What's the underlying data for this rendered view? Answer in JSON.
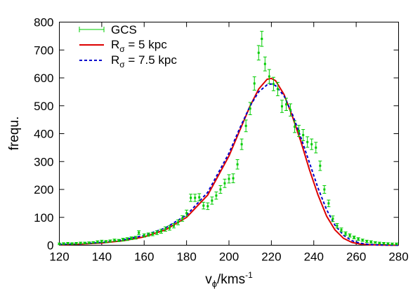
{
  "chart_data": {
    "type": "line",
    "title": "",
    "xlabel": "v",
    "xlabel_sub": "ϕ",
    "xlabel_rest": "/kms",
    "xlabel_sup": "-1",
    "ylabel": "frequ.",
    "xlim": [
      120,
      280
    ],
    "ylim": [
      0,
      800
    ],
    "xticks": [
      120,
      140,
      160,
      180,
      200,
      220,
      240,
      260,
      280
    ],
    "yticks": [
      0,
      100,
      200,
      300,
      400,
      500,
      600,
      700,
      800
    ],
    "grid": false,
    "legend": {
      "position": "top-left"
    },
    "series": [
      {
        "name": "GCS",
        "style": "points-errorbars",
        "color": "#00cc00",
        "points": [
          [
            120,
            5,
            3
          ],
          [
            122,
            6,
            3
          ],
          [
            124,
            7,
            3
          ],
          [
            126,
            6,
            3
          ],
          [
            128,
            7,
            3
          ],
          [
            130,
            8,
            3
          ],
          [
            132,
            8,
            3
          ],
          [
            134,
            9,
            3
          ],
          [
            136,
            10,
            3
          ],
          [
            138,
            12,
            4
          ],
          [
            140,
            14,
            4
          ],
          [
            142,
            13,
            4
          ],
          [
            144,
            15,
            4
          ],
          [
            146,
            18,
            4
          ],
          [
            148,
            17,
            4
          ],
          [
            150,
            20,
            5
          ],
          [
            152,
            22,
            5
          ],
          [
            154,
            25,
            5
          ],
          [
            156,
            27,
            5
          ],
          [
            157.5,
            45,
            7
          ],
          [
            160,
            35,
            6
          ],
          [
            162,
            38,
            6
          ],
          [
            164,
            40,
            6
          ],
          [
            166,
            45,
            7
          ],
          [
            168,
            50,
            7
          ],
          [
            170,
            58,
            8
          ],
          [
            172,
            62,
            8
          ],
          [
            174,
            70,
            8
          ],
          [
            176,
            82,
            9
          ],
          [
            178,
            96,
            10
          ],
          [
            180,
            115,
            11
          ],
          [
            182,
            170,
            13
          ],
          [
            184,
            170,
            13
          ],
          [
            186,
            172,
            13
          ],
          [
            188,
            142,
            12
          ],
          [
            190,
            140,
            12
          ],
          [
            192,
            160,
            13
          ],
          [
            194,
            178,
            13
          ],
          [
            196,
            200,
            14
          ],
          [
            198,
            222,
            15
          ],
          [
            200,
            238,
            15
          ],
          [
            202,
            240,
            16
          ],
          [
            204,
            290,
            17
          ],
          [
            206,
            362,
            19
          ],
          [
            208,
            428,
            21
          ],
          [
            210,
            490,
            22
          ],
          [
            212,
            580,
            24
          ],
          [
            214,
            690,
            26
          ],
          [
            215.5,
            740,
            27
          ],
          [
            217,
            650,
            25
          ],
          [
            219,
            605,
            25
          ],
          [
            221,
            578,
            24
          ],
          [
            223,
            560,
            24
          ],
          [
            225,
            498,
            22
          ],
          [
            227,
            505,
            22
          ],
          [
            229,
            485,
            22
          ],
          [
            231,
            425,
            21
          ],
          [
            233,
            410,
            20
          ],
          [
            235,
            395,
            20
          ],
          [
            237,
            370,
            19
          ],
          [
            239,
            362,
            19
          ],
          [
            241,
            350,
            19
          ],
          [
            243,
            285,
            17
          ],
          [
            245,
            200,
            14
          ],
          [
            247,
            150,
            12
          ],
          [
            249,
            95,
            10
          ],
          [
            251,
            70,
            8
          ],
          [
            253,
            55,
            7
          ],
          [
            255,
            42,
            6
          ],
          [
            257,
            35,
            6
          ],
          [
            259,
            28,
            5
          ],
          [
            261,
            22,
            5
          ],
          [
            263,
            18,
            4
          ],
          [
            265,
            14,
            4
          ],
          [
            267,
            12,
            4
          ],
          [
            269,
            10,
            3
          ],
          [
            271,
            8,
            3
          ],
          [
            273,
            7,
            3
          ],
          [
            275,
            6,
            3
          ],
          [
            277,
            5,
            3
          ],
          [
            279,
            5,
            3
          ]
        ]
      },
      {
        "name": "Rσ = 5 kpc",
        "name_base": "R",
        "name_sub": "σ",
        "name_rest": " = 5 kpc",
        "style": "solid",
        "color": "#dd0000",
        "x": [
          120,
          130,
          140,
          150,
          160,
          170,
          180,
          190,
          200,
          205,
          210,
          214,
          218,
          220,
          222,
          226,
          230,
          234,
          238,
          242,
          246,
          250,
          254,
          258,
          262,
          266,
          270,
          280
        ],
        "y": [
          2,
          4,
          8,
          16,
          30,
          55,
          100,
          180,
          320,
          410,
          500,
          560,
          595,
          598,
          590,
          540,
          460,
          370,
          270,
          180,
          105,
          55,
          25,
          10,
          4,
          2,
          1,
          0
        ]
      },
      {
        "name": "Rσ = 7.5 kpc",
        "name_base": "R",
        "name_sub": "σ",
        "name_rest": " = 7.5 kpc",
        "style": "dashed",
        "color": "#0000cc",
        "x": [
          120,
          130,
          140,
          150,
          160,
          170,
          180,
          190,
          200,
          205,
          210,
          214,
          218,
          220,
          222,
          226,
          230,
          234,
          238,
          242,
          246,
          250,
          254,
          258,
          262,
          266,
          270,
          280
        ],
        "y": [
          3,
          5,
          10,
          19,
          35,
          62,
          108,
          190,
          330,
          418,
          500,
          550,
          575,
          578,
          572,
          535,
          468,
          385,
          295,
          205,
          128,
          72,
          36,
          16,
          7,
          3,
          1,
          0
        ]
      }
    ]
  }
}
